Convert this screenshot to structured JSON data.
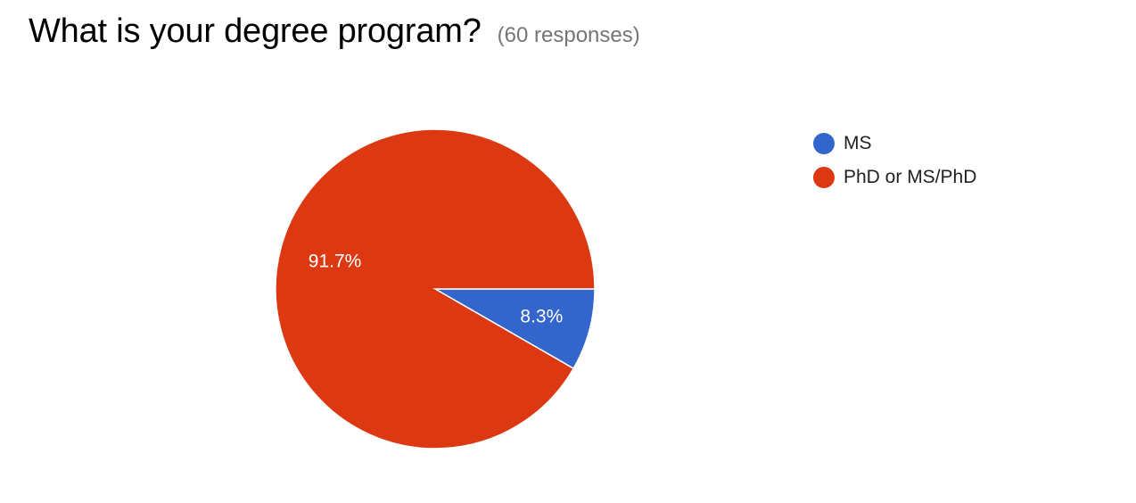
{
  "header": {
    "title": "What is your degree program?",
    "responses": "(60 responses)"
  },
  "chart_data": {
    "type": "pie",
    "slices": [
      {
        "name": "MS",
        "value": 8.3,
        "label": "8.3%",
        "color": "#3366cc"
      },
      {
        "name": "PhD or MS/PhD",
        "value": 91.7,
        "label": "91.7%",
        "color": "#dc3912"
      }
    ],
    "legend_position": "right"
  }
}
